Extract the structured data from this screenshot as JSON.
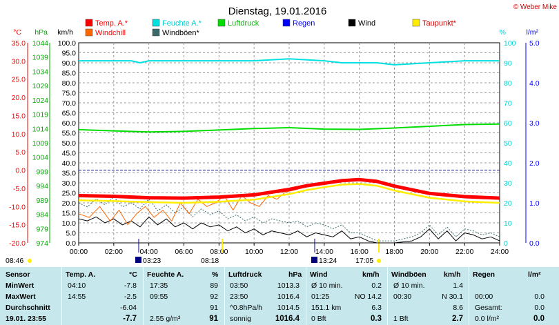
{
  "chart_data": {
    "type": "line",
    "title": "Dienstag, 19.01.2016",
    "credit": "© Weber Mike",
    "x_ticks": [
      "00:00",
      "02:00",
      "04:00",
      "06:00",
      "08:00",
      "10:00",
      "12:00",
      "14:00",
      "16:00",
      "18:00",
      "20:00",
      "22:00",
      "24:00"
    ],
    "axes": {
      "temp": {
        "unit": "°C",
        "ticks": [
          "35.0",
          "30.0",
          "25.0",
          "20.0",
          "15.0",
          "10.0",
          "5.0",
          "0.0",
          "-5.0",
          "-10.0",
          "-15.0",
          "-20.0"
        ],
        "range": [
          -20,
          35
        ]
      },
      "pressure": {
        "unit": "hPa",
        "ticks": [
          "1044",
          "1039",
          "1034",
          "1029",
          "1024",
          "1019",
          "1014",
          "1009",
          "1004",
          "999",
          "994",
          "989",
          "984",
          "979",
          "974"
        ],
        "range": [
          974,
          1044
        ]
      },
      "wind": {
        "unit": "km/h",
        "ticks": [
          "100.0",
          "95.0",
          "90.0",
          "85.0",
          "80.0",
          "75.0",
          "70.0",
          "65.0",
          "60.0",
          "55.0",
          "50.0",
          "45.0",
          "40.0",
          "35.0",
          "30.0",
          "25.0",
          "20.0",
          "15.0",
          "10.0",
          "5.0",
          "0.0"
        ],
        "range": [
          0,
          100
        ]
      },
      "humidity": {
        "unit": "%",
        "ticks": [
          "100",
          "90",
          "80",
          "70",
          "60",
          "50",
          "40",
          "30",
          "20",
          "10",
          "0"
        ],
        "range": [
          0,
          100
        ]
      },
      "rain": {
        "unit": "l/m²",
        "ticks": [
          "5.0",
          "4.0",
          "3.0",
          "2.0",
          "1.0",
          "0.0"
        ],
        "range": [
          0,
          5
        ]
      }
    },
    "legend": [
      {
        "name": "Temp. A.*",
        "color": "#ff0000"
      },
      {
        "name": "Feuchte A.*",
        "color": "#00e0e0"
      },
      {
        "name": "Luftdruck",
        "color": "#00dd00"
      },
      {
        "name": "Regen",
        "color": "#0000ff"
      },
      {
        "name": "Wind",
        "color": "#000000"
      },
      {
        "name": "Taupunkt*",
        "color": "#ffee00"
      },
      {
        "name": "Windchill",
        "color": "#ff6600"
      },
      {
        "name": "Windböen*",
        "color": "#3a6a6a"
      }
    ],
    "series": [
      {
        "name": "Feuchte A.*",
        "axis": "humidity",
        "color": "#00e0e0",
        "x": [
          0,
          3,
          3.5,
          4,
          6,
          10,
          12,
          14,
          15,
          16,
          17,
          18,
          20,
          22,
          24
        ],
        "values": [
          91,
          91,
          90,
          91,
          91,
          91,
          92,
          91,
          90,
          90,
          90,
          89,
          90,
          91,
          91
        ]
      },
      {
        "name": "Luftdruck",
        "axis": "pressure",
        "color": "#00dd00",
        "x": [
          0,
          2,
          4,
          6,
          8,
          10,
          12,
          14,
          16,
          18,
          20,
          22,
          24
        ],
        "values": [
          1013.6,
          1013.2,
          1012.8,
          1013.0,
          1013.5,
          1014.0,
          1014.3,
          1013.8,
          1013.7,
          1014.2,
          1014.8,
          1015.4,
          1015.6
        ]
      },
      {
        "name": "Temp. A.*",
        "axis": "temp",
        "color": "#ff0000",
        "x": [
          0,
          2,
          4,
          6,
          8,
          10,
          12,
          13,
          14,
          15,
          16,
          17,
          18,
          20,
          22,
          24
        ],
        "values": [
          -7.0,
          -7.2,
          -7.6,
          -7.7,
          -7.4,
          -6.8,
          -5.3,
          -4.3,
          -3.6,
          -2.9,
          -2.6,
          -3.1,
          -4.4,
          -6.4,
          -7.3,
          -7.7
        ]
      },
      {
        "name": "Taupunkt*",
        "axis": "temp",
        "color": "#ffee00",
        "x": [
          0,
          2,
          4,
          6,
          8,
          10,
          12,
          13,
          14,
          15,
          16,
          17,
          18,
          20,
          22,
          24
        ],
        "values": [
          -8.3,
          -8.5,
          -8.8,
          -9.0,
          -8.7,
          -8.1,
          -6.6,
          -5.5,
          -4.7,
          -4.0,
          -3.8,
          -4.3,
          -5.6,
          -7.6,
          -8.6,
          -9.0
        ]
      },
      {
        "name": "Windchill",
        "axis": "temp",
        "color": "#ff6600",
        "x": [
          0,
          0.6,
          1.2,
          1.8,
          2.3,
          2.8,
          3.3,
          3.8,
          4.3,
          4.8,
          5.3,
          5.8,
          6.3,
          6.8,
          7.3,
          7.8,
          8.3,
          8.8,
          9.3,
          9.8,
          10.3,
          10.8,
          11.3,
          11.8,
          12.3,
          13
        ],
        "values": [
          -12,
          -13,
          -10,
          -14,
          -11,
          -15,
          -12,
          -10,
          -13,
          -11,
          -14,
          -9,
          -12,
          -8,
          -10,
          -9,
          -7,
          -11,
          -7,
          -9,
          -10,
          -7,
          -8,
          -6,
          -5.5,
          -4.5
        ]
      },
      {
        "name": "Wind",
        "axis": "wind",
        "color": "#000000",
        "x": [
          0,
          0.5,
          1,
          1.5,
          2,
          2.5,
          3,
          3.5,
          4,
          4.5,
          5,
          5.5,
          6,
          6.5,
          7,
          7.5,
          8,
          8.5,
          9,
          9.5,
          10,
          10.5,
          11,
          11.5,
          12,
          12.5,
          13,
          13.5,
          14,
          14.5,
          15,
          15.5,
          16,
          16.5,
          17,
          18,
          19,
          19.5,
          20,
          20.5,
          21,
          21.5,
          22,
          22.5,
          23,
          23.5,
          24
        ],
        "values": [
          12,
          11,
          13,
          10,
          12,
          9,
          11,
          8,
          13,
          9,
          12,
          8,
          10,
          7,
          10,
          8,
          9,
          6,
          8,
          5,
          7,
          4,
          6,
          5,
          4,
          6,
          3,
          5,
          4,
          3,
          6,
          2,
          3,
          1,
          0,
          0,
          1,
          3,
          7,
          2,
          6,
          1,
          5,
          4,
          2,
          3,
          1
        ]
      },
      {
        "name": "Windböen*",
        "axis": "wind",
        "color": "#3a6a6a",
        "x": [
          0,
          0.5,
          1,
          1.5,
          2,
          2.5,
          3,
          3.5,
          4,
          4.5,
          5,
          5.5,
          6,
          6.5,
          7,
          7.5,
          8,
          8.5,
          9,
          9.5,
          10,
          10.5,
          11,
          11.5,
          12,
          12.5,
          13,
          13.5,
          14,
          14.5,
          15,
          15.5,
          16,
          16.5,
          17,
          18,
          19,
          19.5,
          20,
          20.5,
          21,
          21.5,
          22,
          22.5,
          23,
          23.5,
          24
        ],
        "values": [
          20,
          18,
          22,
          19,
          23,
          18,
          20,
          17,
          22,
          16,
          19,
          15,
          18,
          13,
          17,
          14,
          16,
          12,
          14,
          11,
          13,
          10,
          12,
          11,
          10,
          11,
          8,
          10,
          9,
          7,
          9,
          5,
          5,
          3,
          1,
          1,
          3,
          5,
          9,
          4,
          8,
          3,
          7,
          6,
          4,
          5,
          3
        ]
      }
    ],
    "annotations": {
      "sunrise": "08:46",
      "moon_times": [
        "03:23",
        "13:24"
      ],
      "time_marks": [
        "08:18",
        "17:05"
      ]
    }
  },
  "table": {
    "headers": {
      "sensor": "Sensor",
      "temp": "Temp. A.",
      "temp_unit": "°C",
      "humidity": "Feuchte A.",
      "humidity_unit": "%",
      "pressure": "Luftdruck",
      "pressure_unit": "hPa",
      "wind": "Wind",
      "wind_unit": "km/h",
      "gust": "Windböen",
      "gust_unit": "km/h",
      "rain": "Regen",
      "rain_unit": "l/m²"
    },
    "rows": [
      {
        "label": "MinWert",
        "temp_time": "04:10",
        "temp_val": "-7.8",
        "hum_time": "17:35",
        "hum_val": "89",
        "press_time": "03:50",
        "press_val": "1013.3",
        "wind_label": "Ø 10 min.",
        "wind_val": "0.2",
        "gust_label": "Ø 10 min.",
        "gust_val": "1.4",
        "rain_label": "",
        "rain_val": ""
      },
      {
        "label": "MaxWert",
        "temp_time": "14:55",
        "temp_val": "-2.5",
        "hum_time": "09:55",
        "hum_val": "92",
        "press_time": "23:50",
        "press_val": "1016.4",
        "wind_label": "01:25",
        "wind_val": "NO 14.2",
        "gust_label": "00:30",
        "gust_val": "N 30.1",
        "rain_label": "00:00",
        "rain_val": "0.0"
      },
      {
        "label": "Durchschnitt",
        "temp_time": "",
        "temp_val": "-6.04",
        "hum_time": "",
        "hum_val": "91",
        "press_time": "^0.8hPa/h",
        "press_val": "1014.5",
        "wind_label": "151.1 km",
        "wind_val": "6.3",
        "gust_label": "",
        "gust_val": "8.6",
        "rain_label": "Gesamt:",
        "rain_val": "0.0"
      },
      {
        "label": "19.01. 23:55",
        "temp_time": "",
        "temp_val": "-7.7",
        "hum_time": "2.55 g/m³",
        "hum_val": "91",
        "press_time": "sonnig",
        "press_val": "1016.4",
        "wind_label": "0 Bft",
        "wind_val": "0.3",
        "gust_label": "1 Bft",
        "gust_val": "2.7",
        "rain_label": "0.0 l/m²",
        "rain_val": "0.0"
      }
    ]
  }
}
